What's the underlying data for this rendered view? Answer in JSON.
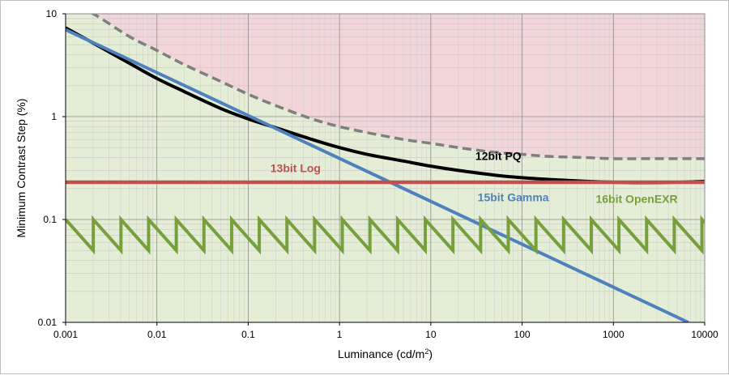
{
  "chart_data": {
    "type": "line",
    "xlabel": "Luminance (cd/m",
    "xlabel_sup": "2",
    "xlabel_suffix": ")",
    "ylabel": "Minimum Contrast Step (%)",
    "x_scale": "log",
    "y_scale": "log",
    "xlim": [
      0.001,
      10000
    ],
    "ylim": [
      0.01,
      10
    ],
    "x_ticks": [
      "0.001",
      "0.01",
      "0.1",
      "1",
      "10",
      "100",
      "1000",
      "10000"
    ],
    "x_tick_values": [
      0.001,
      0.01,
      0.1,
      1,
      10,
      100,
      1000,
      10000
    ],
    "y_ticks": [
      "0.01",
      "0.1",
      "1",
      "10"
    ],
    "y_tick_values": [
      0.01,
      0.1,
      1,
      10
    ],
    "grid": true,
    "regions": [
      {
        "name": "visible-banding",
        "color": "#f2d5d8",
        "side": "above",
        "boundary_series": 0
      },
      {
        "name": "no-visible-banding",
        "color": "#e4eed6",
        "side": "below",
        "boundary_series": 0
      }
    ],
    "series": [
      {
        "style": "dashed",
        "color": "#7f7f7f",
        "x": [
          0.001,
          0.002,
          0.005,
          0.01,
          0.02,
          0.05,
          0.1,
          0.2,
          0.5,
          1,
          2,
          5,
          10,
          20,
          50,
          100,
          200,
          500,
          1000,
          2000,
          5000,
          10000
        ],
        "y": [
          13.0,
          10.0,
          6.0,
          4.4,
          3.2,
          2.2,
          1.65,
          1.28,
          0.95,
          0.8,
          0.7,
          0.6,
          0.55,
          0.5,
          0.45,
          0.43,
          0.41,
          0.4,
          0.39,
          0.39,
          0.39,
          0.39
        ]
      },
      {
        "name": "12bit PQ",
        "color": "#000000",
        "x": [
          0.001,
          0.002,
          0.005,
          0.01,
          0.02,
          0.05,
          0.1,
          0.2,
          0.5,
          1,
          2,
          5,
          10,
          20,
          50,
          100,
          200,
          500,
          1000,
          2000,
          5000,
          10000
        ],
        "y": [
          7.3,
          5.2,
          3.3,
          2.35,
          1.75,
          1.2,
          0.95,
          0.78,
          0.6,
          0.5,
          0.43,
          0.37,
          0.33,
          0.3,
          0.27,
          0.255,
          0.245,
          0.235,
          0.23,
          0.228,
          0.23,
          0.235
        ]
      },
      {
        "name": "15bit Gamma",
        "color": "#4f81bd",
        "x": [
          0.001,
          6600
        ],
        "y": [
          7.0,
          0.01
        ]
      },
      {
        "name": "13bit Log",
        "color": "#c0504d",
        "x": [
          0.001,
          10000
        ],
        "y": [
          0.23,
          0.23
        ]
      },
      {
        "name": "16bit OpenEXR",
        "color": "#77a03c",
        "style": "sawtooth",
        "y_low": 0.05,
        "y_high": 0.1,
        "periods_per_decade": 3.3
      }
    ],
    "annotations": [
      {
        "text": "12bit PQ",
        "series": 1,
        "x": 55,
        "y": 0.38
      },
      {
        "text": "15bit Gamma",
        "series": 2,
        "x": 80,
        "y": 0.15
      },
      {
        "text": "13bit Log",
        "series": 3,
        "x": 0.33,
        "y": 0.29
      },
      {
        "text": "16bit OpenEXR",
        "series": 4,
        "x": 1800,
        "y": 0.145
      }
    ]
  }
}
